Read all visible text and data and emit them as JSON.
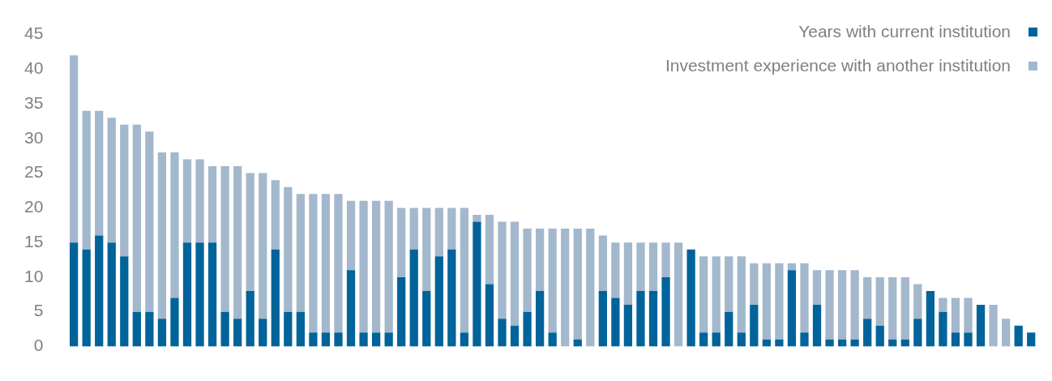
{
  "chart_data": {
    "type": "bar",
    "stacked": true,
    "legend": "top right",
    "grid": false,
    "categories": [
      null,
      null,
      null,
      null,
      null,
      null,
      null,
      null,
      null,
      null,
      null,
      null,
      null,
      null,
      null,
      null,
      null,
      null,
      null,
      null,
      null,
      null,
      null,
      null,
      null,
      null,
      null,
      null,
      null,
      null,
      null,
      null,
      null,
      null,
      null,
      null,
      null,
      null,
      null,
      null,
      null,
      null,
      null,
      null,
      null,
      null,
      null,
      null,
      null,
      null,
      null,
      null,
      null,
      null,
      null,
      null,
      null,
      null,
      null,
      null,
      null,
      null,
      null,
      null,
      null,
      null,
      null,
      null,
      null,
      null,
      null,
      null,
      null,
      null,
      null,
      null,
      null
    ],
    "series": [
      {
        "name": "Years with current institution",
        "color": "#00639a",
        "values": [
          15,
          14,
          16,
          15,
          13,
          5,
          5,
          4,
          7,
          15,
          15,
          15,
          5,
          4,
          8,
          4,
          14,
          5,
          5,
          2,
          2,
          2,
          11,
          2,
          2,
          2,
          10,
          14,
          8,
          13,
          14,
          2,
          18,
          9,
          4,
          3,
          5,
          8,
          2,
          0,
          1,
          0,
          8,
          7,
          6,
          8,
          8,
          10,
          0,
          14,
          2,
          2,
          5,
          2,
          6,
          1,
          1,
          11,
          2,
          6,
          1,
          1,
          1,
          4,
          3,
          1,
          1,
          4,
          8,
          5,
          2,
          2,
          6,
          0,
          0,
          3,
          2
        ]
      },
      {
        "name": "Investment experience with another institution",
        "color": "#a3b8cc",
        "values": [
          27,
          20,
          18,
          18,
          19,
          27,
          26,
          24,
          21,
          12,
          12,
          11,
          21,
          22,
          17,
          21,
          10,
          18,
          17,
          20,
          20,
          20,
          10,
          19,
          19,
          19,
          10,
          6,
          12,
          7,
          6,
          18,
          1,
          10,
          14,
          15,
          12,
          9,
          15,
          17,
          16,
          17,
          8,
          8,
          9,
          7,
          7,
          5,
          15,
          0,
          11,
          11,
          8,
          11,
          6,
          11,
          11,
          1,
          10,
          5,
          10,
          10,
          10,
          6,
          7,
          9,
          9,
          5,
          0,
          2,
          5,
          5,
          0,
          6,
          4,
          0,
          0
        ]
      }
    ],
    "ylim": [
      0,
      45
    ],
    "yticks": [
      0,
      5,
      10,
      15,
      20,
      25,
      30,
      35,
      40,
      45
    ]
  }
}
